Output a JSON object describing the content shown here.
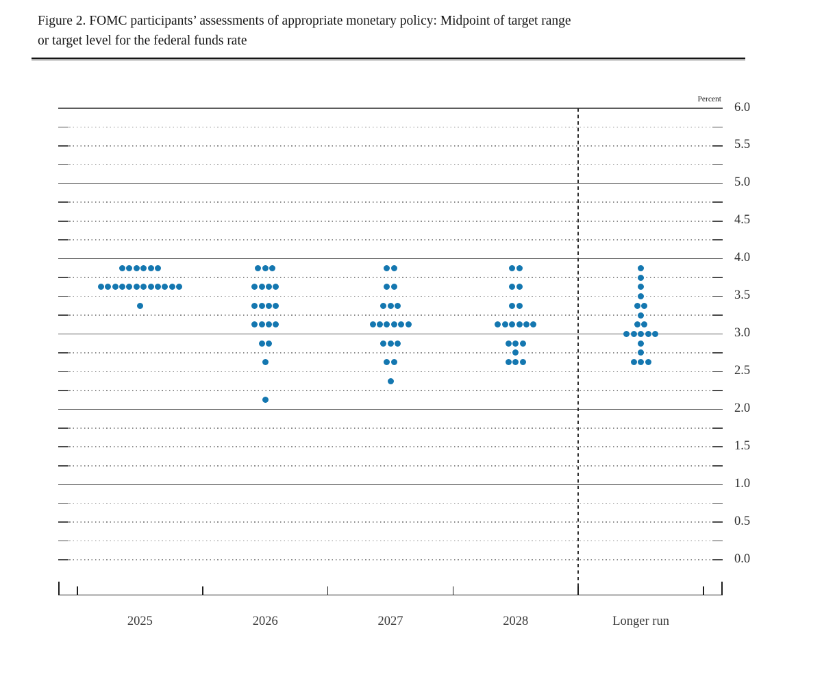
{
  "header": {
    "title_line1": "Figure 2. FOMC participants’ assessments of appropriate monetary policy: Midpoint of target range",
    "title_line2": "or target level for the federal funds rate"
  },
  "chart_data": {
    "type": "scatter",
    "subtype": "fomc-dot-plot",
    "title": "Figure 2. FOMC participants’ assessments of appropriate monetary policy: Midpoint of target range or target level for the federal funds rate",
    "unit_label": "Percent",
    "categories": [
      "2025",
      "2026",
      "2027",
      "2028",
      "Longer run"
    ],
    "ylim": [
      0.0,
      6.0
    ],
    "ytick_step": 0.5,
    "ytick_labels": [
      "6.0",
      "5.5",
      "5.0",
      "4.5",
      "4.0",
      "3.5",
      "3.0",
      "2.5",
      "2.0",
      "1.5",
      "1.0",
      "0.5",
      "0.0"
    ],
    "gridline_step": 0.25,
    "solid_gridlines": [
      1.0,
      2.0,
      3.0,
      4.0,
      5.0,
      6.0
    ],
    "grid_on": true,
    "legend_position": "none",
    "divider_before_category": "Longer run",
    "series": [
      {
        "category": "2025",
        "dots": [
          {
            "rate": 3.875,
            "count": 6
          },
          {
            "rate": 3.625,
            "count": 12
          },
          {
            "rate": 3.375,
            "count": 1
          }
        ]
      },
      {
        "category": "2026",
        "dots": [
          {
            "rate": 3.875,
            "count": 3
          },
          {
            "rate": 3.625,
            "count": 4
          },
          {
            "rate": 3.375,
            "count": 4
          },
          {
            "rate": 3.125,
            "count": 4
          },
          {
            "rate": 2.875,
            "count": 2
          },
          {
            "rate": 2.625,
            "count": 1
          },
          {
            "rate": 2.125,
            "count": 1
          }
        ]
      },
      {
        "category": "2027",
        "dots": [
          {
            "rate": 3.875,
            "count": 2
          },
          {
            "rate": 3.625,
            "count": 2
          },
          {
            "rate": 3.375,
            "count": 3
          },
          {
            "rate": 3.125,
            "count": 6
          },
          {
            "rate": 2.875,
            "count": 3
          },
          {
            "rate": 2.625,
            "count": 2
          },
          {
            "rate": 2.375,
            "count": 1
          }
        ]
      },
      {
        "category": "2028",
        "dots": [
          {
            "rate": 3.875,
            "count": 2
          },
          {
            "rate": 3.625,
            "count": 2
          },
          {
            "rate": 3.375,
            "count": 2
          },
          {
            "rate": 3.125,
            "count": 6
          },
          {
            "rate": 2.875,
            "count": 3
          },
          {
            "rate": 2.75,
            "count": 1
          },
          {
            "rate": 2.625,
            "count": 3
          }
        ]
      },
      {
        "category": "Longer run",
        "dots": [
          {
            "rate": 3.875,
            "count": 1
          },
          {
            "rate": 3.75,
            "count": 1
          },
          {
            "rate": 3.625,
            "count": 1
          },
          {
            "rate": 3.5,
            "count": 1
          },
          {
            "rate": 3.375,
            "count": 2
          },
          {
            "rate": 3.25,
            "count": 1
          },
          {
            "rate": 3.125,
            "count": 2
          },
          {
            "rate": 3.0,
            "count": 5
          },
          {
            "rate": 2.875,
            "count": 1
          },
          {
            "rate": 2.75,
            "count": 1
          },
          {
            "rate": 2.625,
            "count": 3
          }
        ]
      }
    ],
    "colors": {
      "dot": "#1477b0"
    }
  }
}
